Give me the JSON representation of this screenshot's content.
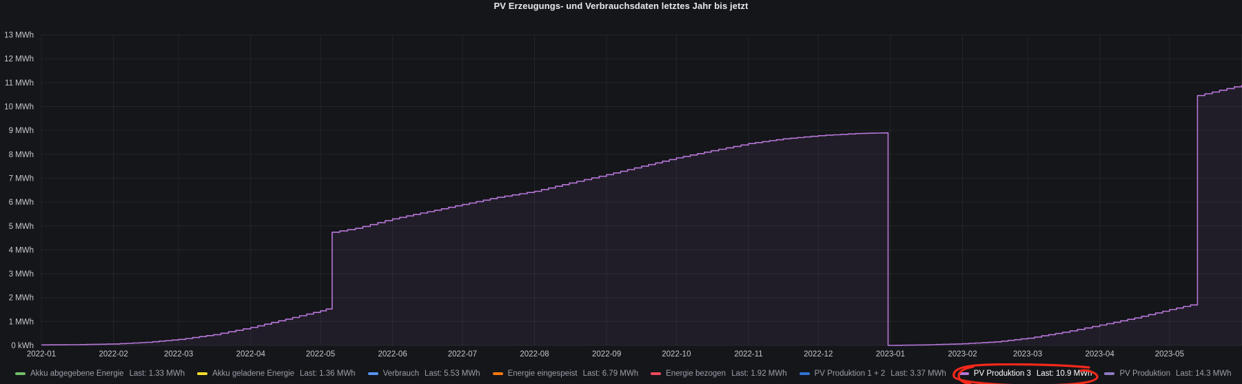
{
  "title": "PV Erzeugungs- und Verbrauchsdaten letztes Jahr bis jetzt",
  "colors": {
    "background": "#14161a",
    "grid": "rgba(204,204,220,0.08)",
    "axis_text": "#c7c8cd",
    "legend_text": "#9b9fa7",
    "legend_text_highlight": "#ffffff",
    "annotation_red": "#f5291b"
  },
  "chart_data": {
    "type": "line",
    "title": "PV Erzeugungs- und Verbrauchsdaten letztes Jahr bis jetzt",
    "line_style": "stepped",
    "unit": "MWh",
    "grid": true,
    "legend_position": "bottom",
    "y_axis": {
      "range": [
        0,
        13
      ],
      "ticks": [
        "0 kWh",
        "1 MWh",
        "2 MWh",
        "3 MWh",
        "4 MWh",
        "5 MWh",
        "6 MWh",
        "7 MWh",
        "8 MWh",
        "9 MWh",
        "10 MWh",
        "11 MWh",
        "12 MWh",
        "13 MWh"
      ]
    },
    "x_axis": {
      "range_days": [
        0,
        516
      ],
      "epoch": "2022-01-01",
      "ticks": [
        {
          "day": 0,
          "label": "2022-01"
        },
        {
          "day": 31,
          "label": "2022-02"
        },
        {
          "day": 59,
          "label": "2022-03"
        },
        {
          "day": 90,
          "label": "2022-04"
        },
        {
          "day": 120,
          "label": "2022-05"
        },
        {
          "day": 151,
          "label": "2022-06"
        },
        {
          "day": 181,
          "label": "2022-07"
        },
        {
          "day": 212,
          "label": "2022-08"
        },
        {
          "day": 243,
          "label": "2022-09"
        },
        {
          "day": 273,
          "label": "2022-10"
        },
        {
          "day": 304,
          "label": "2022-11"
        },
        {
          "day": 334,
          "label": "2022-12"
        },
        {
          "day": 365,
          "label": "2023-01"
        },
        {
          "day": 396,
          "label": "2023-02"
        },
        {
          "day": 424,
          "label": "2023-03"
        },
        {
          "day": 455,
          "label": "2023-04"
        },
        {
          "day": 485,
          "label": "2023-05"
        },
        {
          "day": 516,
          "label": ""
        }
      ]
    },
    "series": [
      {
        "name": "PV Produktion 3",
        "color": "#B877D9",
        "fill_opacity": 0.08,
        "points_day_mwh": [
          [
            0,
            0.02
          ],
          [
            14,
            0.03
          ],
          [
            31,
            0.06
          ],
          [
            45,
            0.13
          ],
          [
            59,
            0.25
          ],
          [
            74,
            0.45
          ],
          [
            90,
            0.75
          ],
          [
            105,
            1.1
          ],
          [
            120,
            1.45
          ],
          [
            125,
            1.6
          ],
          [
            125,
            4.74
          ],
          [
            135,
            4.9
          ],
          [
            151,
            5.3
          ],
          [
            166,
            5.6
          ],
          [
            181,
            5.9
          ],
          [
            196,
            6.2
          ],
          [
            212,
            6.45
          ],
          [
            227,
            6.8
          ],
          [
            243,
            7.15
          ],
          [
            258,
            7.5
          ],
          [
            273,
            7.85
          ],
          [
            288,
            8.15
          ],
          [
            304,
            8.45
          ],
          [
            319,
            8.65
          ],
          [
            334,
            8.78
          ],
          [
            350,
            8.87
          ],
          [
            364,
            8.9
          ],
          [
            364,
            0.0
          ],
          [
            379,
            0.02
          ],
          [
            396,
            0.07
          ],
          [
            410,
            0.15
          ],
          [
            424,
            0.3
          ],
          [
            439,
            0.55
          ],
          [
            455,
            0.85
          ],
          [
            470,
            1.15
          ],
          [
            485,
            1.5
          ],
          [
            497,
            1.76
          ],
          [
            497,
            10.46
          ],
          [
            516,
            10.9
          ]
        ]
      }
    ],
    "legend": [
      {
        "name": "Akku abgegebene Energie",
        "last": "Last: 1.33 MWh",
        "color": "#73BF69",
        "highlighted": false
      },
      {
        "name": "Akku geladene Energie",
        "last": "Last: 1.36 MWh",
        "color": "#FADE2A",
        "highlighted": false
      },
      {
        "name": "Verbrauch",
        "last": "Last: 5.53 MWh",
        "color": "#5794F2",
        "highlighted": false
      },
      {
        "name": "Energie eingespeist",
        "last": "Last: 6.79 MWh",
        "color": "#FF780A",
        "highlighted": false
      },
      {
        "name": "Energie bezogen",
        "last": "Last: 1.92 MWh",
        "color": "#F2495C",
        "highlighted": false
      },
      {
        "name": "PV Produktion 1 + 2",
        "last": "Last: 3.37 MWh",
        "color": "#3274D9",
        "highlighted": false
      },
      {
        "name": "PV Produktion 3",
        "last": "Last: 10.9 MWh",
        "color": "#B877D9",
        "highlighted": true
      },
      {
        "name": "PV Produktion",
        "last": "Last: 14.3 MWh",
        "color": "#8F7AC1",
        "highlighted": false
      }
    ],
    "annotation": {
      "shape": "hand-drawn-red-circle",
      "target": "PV Produktion 3",
      "color": "#f5291b"
    }
  }
}
